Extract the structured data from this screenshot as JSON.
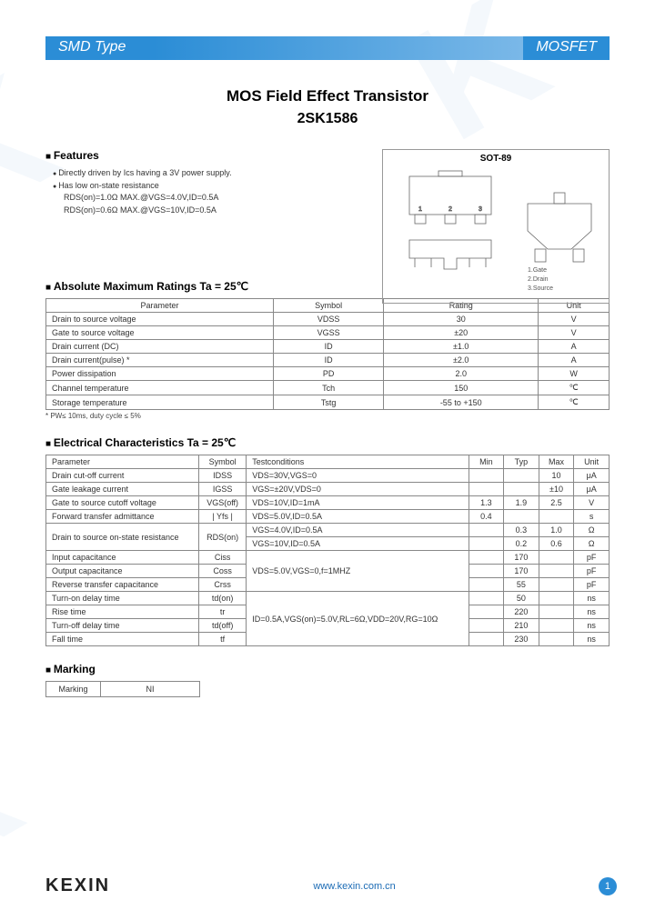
{
  "header": {
    "left": "SMD Type",
    "right": "MOSFET"
  },
  "title": "MOS Field Effect  Transistor",
  "part_number": "2SK1586",
  "package": {
    "label": "SOT-89",
    "pins": [
      "1.Gate",
      "2.Drain",
      "3.Source"
    ]
  },
  "features": {
    "heading": "Features",
    "items": [
      "Directly driven by Ics having a 3V power supply.",
      "Has low on-state resistance",
      "RDS(on)=1.0Ω MAX.@VGS=4.0V,ID=0.5A",
      "RDS(on)=0.6Ω MAX.@VGS=10V,ID=0.5A"
    ]
  },
  "abs_max": {
    "heading": "Absolute Maximum Ratings Ta = 25℃",
    "columns": [
      "Parameter",
      "Symbol",
      "Rating",
      "Unit"
    ],
    "rows": [
      [
        "Drain to source voltage",
        "VDSS",
        "30",
        "V"
      ],
      [
        "Gate to source voltage",
        "VGSS",
        "±20",
        "V"
      ],
      [
        "Drain current (DC)",
        "ID",
        "±1.0",
        "A"
      ],
      [
        "Drain current(pulse) *",
        "ID",
        "±2.0",
        "A"
      ],
      [
        "Power dissipation",
        "PD",
        "2.0",
        "W"
      ],
      [
        "Channel  temperature",
        "Tch",
        "150",
        "℃"
      ],
      [
        "Storage temperature",
        "Tstg",
        "-55 to +150",
        "℃"
      ]
    ],
    "note": "* PW≤ 10ms, duty cycle ≤ 5%"
  },
  "elec": {
    "heading": "Electrical Characteristics Ta = 25℃",
    "columns": [
      "Parameter",
      "Symbol",
      "Testconditions",
      "Min",
      "Typ",
      "Max",
      "Unit"
    ],
    "rows": [
      [
        "Drain cut-off current",
        "IDSS",
        "VDS=30V,VGS=0",
        "",
        "",
        "10",
        "μA"
      ],
      [
        "Gate leakage current",
        "IGSS",
        "VGS=±20V,VDS=0",
        "",
        "",
        "±10",
        "μA"
      ],
      [
        "Gate to source cutoff voltage",
        "VGS(off)",
        "VDS=10V,ID=1mA",
        "1.3",
        "1.9",
        "2.5",
        "V"
      ],
      [
        "Forward transfer admittance",
        "| Yfs |",
        "VDS=5.0V,ID=0.5A",
        "0.4",
        "",
        "",
        "s"
      ]
    ],
    "rds_label": "Drain to source on-state resistance",
    "rds_symbol": "RDS(on)",
    "rds_rows": [
      [
        "VGS=4.0V,ID=0.5A",
        "",
        "0.3",
        "1.0",
        "Ω"
      ],
      [
        "VGS=10V,ID=0.5A",
        "",
        "0.2",
        "0.6",
        "Ω"
      ]
    ],
    "cap_rows": [
      [
        "Input capacitance",
        "Ciss",
        "",
        "170",
        "",
        "pF"
      ],
      [
        "Output capacitance",
        "Coss",
        "",
        "170",
        "",
        "pF"
      ],
      [
        "Reverse transfer capacitance",
        "Crss",
        "",
        "55",
        "",
        "pF"
      ]
    ],
    "cap_condition": "VDS=5.0V,VGS=0,f=1MHZ",
    "time_rows": [
      [
        "Turn-on delay time",
        "td(on)",
        "",
        "50",
        "",
        "ns"
      ],
      [
        "Rise time",
        "tr",
        "",
        "220",
        "",
        "ns"
      ],
      [
        "Turn-off delay time",
        "td(off)",
        "",
        "210",
        "",
        "ns"
      ],
      [
        "Fall time",
        "tf",
        "",
        "230",
        "",
        "ns"
      ]
    ],
    "time_condition": "ID=0.5A,VGS(on)=5.0V,RL=6Ω,VDD=20V,RG=10Ω"
  },
  "marking": {
    "heading": "Marking",
    "label": "Marking",
    "value": "NI"
  },
  "footer": {
    "logo": "KEXIN",
    "url": "www.kexin.com.cn",
    "pagenum": "1"
  },
  "colors": {
    "brand": "#2b8dd6",
    "border": "#888888",
    "text": "#333333"
  }
}
